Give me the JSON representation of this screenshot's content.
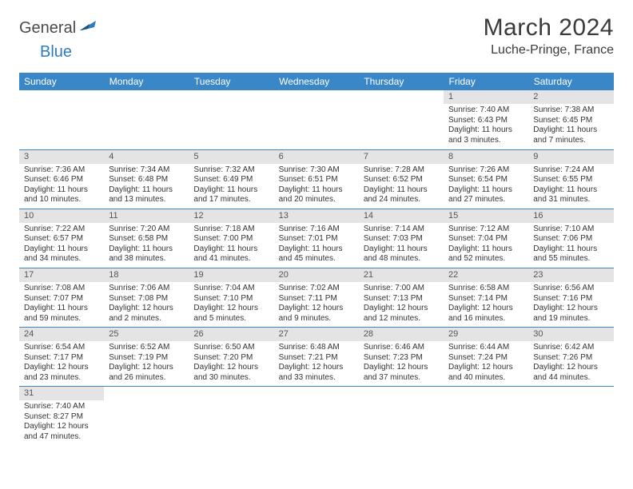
{
  "logo": {
    "part1": "General",
    "part2": "Blue"
  },
  "title": "March 2024",
  "location": "Luche-Pringe, France",
  "colors": {
    "header_bg": "#3a87c7",
    "header_text": "#ffffff",
    "daynum_bg": "#e4e4e4",
    "row_border": "#3a87c7",
    "logo_blue": "#2e7cc0",
    "logo_gray": "#4a4a4a"
  },
  "day_headers": [
    "Sunday",
    "Monday",
    "Tuesday",
    "Wednesday",
    "Thursday",
    "Friday",
    "Saturday"
  ],
  "weeks": [
    [
      null,
      null,
      null,
      null,
      null,
      {
        "n": "1",
        "sunrise": "Sunrise: 7:40 AM",
        "sunset": "Sunset: 6:43 PM",
        "daylight": "Daylight: 11 hours and 3 minutes."
      },
      {
        "n": "2",
        "sunrise": "Sunrise: 7:38 AM",
        "sunset": "Sunset: 6:45 PM",
        "daylight": "Daylight: 11 hours and 7 minutes."
      }
    ],
    [
      {
        "n": "3",
        "sunrise": "Sunrise: 7:36 AM",
        "sunset": "Sunset: 6:46 PM",
        "daylight": "Daylight: 11 hours and 10 minutes."
      },
      {
        "n": "4",
        "sunrise": "Sunrise: 7:34 AM",
        "sunset": "Sunset: 6:48 PM",
        "daylight": "Daylight: 11 hours and 13 minutes."
      },
      {
        "n": "5",
        "sunrise": "Sunrise: 7:32 AM",
        "sunset": "Sunset: 6:49 PM",
        "daylight": "Daylight: 11 hours and 17 minutes."
      },
      {
        "n": "6",
        "sunrise": "Sunrise: 7:30 AM",
        "sunset": "Sunset: 6:51 PM",
        "daylight": "Daylight: 11 hours and 20 minutes."
      },
      {
        "n": "7",
        "sunrise": "Sunrise: 7:28 AM",
        "sunset": "Sunset: 6:52 PM",
        "daylight": "Daylight: 11 hours and 24 minutes."
      },
      {
        "n": "8",
        "sunrise": "Sunrise: 7:26 AM",
        "sunset": "Sunset: 6:54 PM",
        "daylight": "Daylight: 11 hours and 27 minutes."
      },
      {
        "n": "9",
        "sunrise": "Sunrise: 7:24 AM",
        "sunset": "Sunset: 6:55 PM",
        "daylight": "Daylight: 11 hours and 31 minutes."
      }
    ],
    [
      {
        "n": "10",
        "sunrise": "Sunrise: 7:22 AM",
        "sunset": "Sunset: 6:57 PM",
        "daylight": "Daylight: 11 hours and 34 minutes."
      },
      {
        "n": "11",
        "sunrise": "Sunrise: 7:20 AM",
        "sunset": "Sunset: 6:58 PM",
        "daylight": "Daylight: 11 hours and 38 minutes."
      },
      {
        "n": "12",
        "sunrise": "Sunrise: 7:18 AM",
        "sunset": "Sunset: 7:00 PM",
        "daylight": "Daylight: 11 hours and 41 minutes."
      },
      {
        "n": "13",
        "sunrise": "Sunrise: 7:16 AM",
        "sunset": "Sunset: 7:01 PM",
        "daylight": "Daylight: 11 hours and 45 minutes."
      },
      {
        "n": "14",
        "sunrise": "Sunrise: 7:14 AM",
        "sunset": "Sunset: 7:03 PM",
        "daylight": "Daylight: 11 hours and 48 minutes."
      },
      {
        "n": "15",
        "sunrise": "Sunrise: 7:12 AM",
        "sunset": "Sunset: 7:04 PM",
        "daylight": "Daylight: 11 hours and 52 minutes."
      },
      {
        "n": "16",
        "sunrise": "Sunrise: 7:10 AM",
        "sunset": "Sunset: 7:06 PM",
        "daylight": "Daylight: 11 hours and 55 minutes."
      }
    ],
    [
      {
        "n": "17",
        "sunrise": "Sunrise: 7:08 AM",
        "sunset": "Sunset: 7:07 PM",
        "daylight": "Daylight: 11 hours and 59 minutes."
      },
      {
        "n": "18",
        "sunrise": "Sunrise: 7:06 AM",
        "sunset": "Sunset: 7:08 PM",
        "daylight": "Daylight: 12 hours and 2 minutes."
      },
      {
        "n": "19",
        "sunrise": "Sunrise: 7:04 AM",
        "sunset": "Sunset: 7:10 PM",
        "daylight": "Daylight: 12 hours and 5 minutes."
      },
      {
        "n": "20",
        "sunrise": "Sunrise: 7:02 AM",
        "sunset": "Sunset: 7:11 PM",
        "daylight": "Daylight: 12 hours and 9 minutes."
      },
      {
        "n": "21",
        "sunrise": "Sunrise: 7:00 AM",
        "sunset": "Sunset: 7:13 PM",
        "daylight": "Daylight: 12 hours and 12 minutes."
      },
      {
        "n": "22",
        "sunrise": "Sunrise: 6:58 AM",
        "sunset": "Sunset: 7:14 PM",
        "daylight": "Daylight: 12 hours and 16 minutes."
      },
      {
        "n": "23",
        "sunrise": "Sunrise: 6:56 AM",
        "sunset": "Sunset: 7:16 PM",
        "daylight": "Daylight: 12 hours and 19 minutes."
      }
    ],
    [
      {
        "n": "24",
        "sunrise": "Sunrise: 6:54 AM",
        "sunset": "Sunset: 7:17 PM",
        "daylight": "Daylight: 12 hours and 23 minutes."
      },
      {
        "n": "25",
        "sunrise": "Sunrise: 6:52 AM",
        "sunset": "Sunset: 7:19 PM",
        "daylight": "Daylight: 12 hours and 26 minutes."
      },
      {
        "n": "26",
        "sunrise": "Sunrise: 6:50 AM",
        "sunset": "Sunset: 7:20 PM",
        "daylight": "Daylight: 12 hours and 30 minutes."
      },
      {
        "n": "27",
        "sunrise": "Sunrise: 6:48 AM",
        "sunset": "Sunset: 7:21 PM",
        "daylight": "Daylight: 12 hours and 33 minutes."
      },
      {
        "n": "28",
        "sunrise": "Sunrise: 6:46 AM",
        "sunset": "Sunset: 7:23 PM",
        "daylight": "Daylight: 12 hours and 37 minutes."
      },
      {
        "n": "29",
        "sunrise": "Sunrise: 6:44 AM",
        "sunset": "Sunset: 7:24 PM",
        "daylight": "Daylight: 12 hours and 40 minutes."
      },
      {
        "n": "30",
        "sunrise": "Sunrise: 6:42 AM",
        "sunset": "Sunset: 7:26 PM",
        "daylight": "Daylight: 12 hours and 44 minutes."
      }
    ],
    [
      {
        "n": "31",
        "sunrise": "Sunrise: 7:40 AM",
        "sunset": "Sunset: 8:27 PM",
        "daylight": "Daylight: 12 hours and 47 minutes."
      },
      null,
      null,
      null,
      null,
      null,
      null
    ]
  ]
}
